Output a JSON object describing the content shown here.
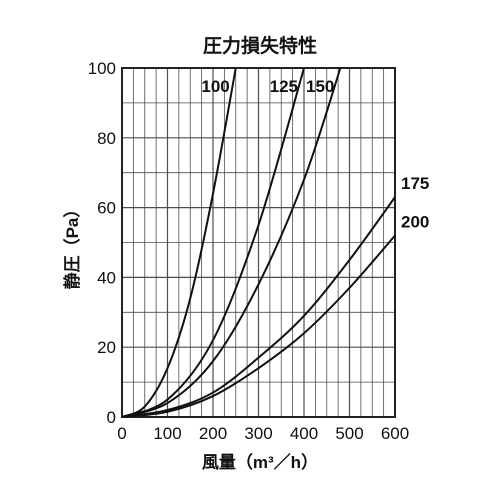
{
  "chart_data": {
    "type": "line",
    "title": "圧力損失特性",
    "xlabel": "風量（m³／h）",
    "ylabel": "静圧（Pa）",
    "xlim": [
      0,
      600
    ],
    "ylim": [
      0,
      100
    ],
    "x_ticks": [
      "0",
      "100",
      "200",
      "300",
      "400",
      "500",
      "600"
    ],
    "y_ticks": [
      "0",
      "20",
      "40",
      "60",
      "80",
      "100"
    ],
    "grid": true,
    "series": [
      {
        "name": "100",
        "x": [
          0,
          50,
          100,
          150,
          200,
          250
        ],
        "y": [
          0,
          3,
          14,
          34,
          64,
          100
        ]
      },
      {
        "name": "125",
        "x": [
          0,
          100,
          200,
          300,
          400
        ],
        "y": [
          0,
          5,
          22,
          55,
          100
        ]
      },
      {
        "name": "150",
        "x": [
          0,
          100,
          200,
          300,
          400,
          480
        ],
        "y": [
          0,
          4,
          16,
          38,
          68,
          100
        ]
      },
      {
        "name": "175",
        "x": [
          0,
          100,
          200,
          300,
          400,
          500,
          600
        ],
        "y": [
          0,
          2,
          7,
          17,
          29,
          45,
          63
        ]
      },
      {
        "name": "200",
        "x": [
          0,
          100,
          200,
          300,
          400,
          500,
          600
        ],
        "y": [
          0,
          1.5,
          6,
          14,
          24,
          37,
          52
        ]
      }
    ]
  }
}
